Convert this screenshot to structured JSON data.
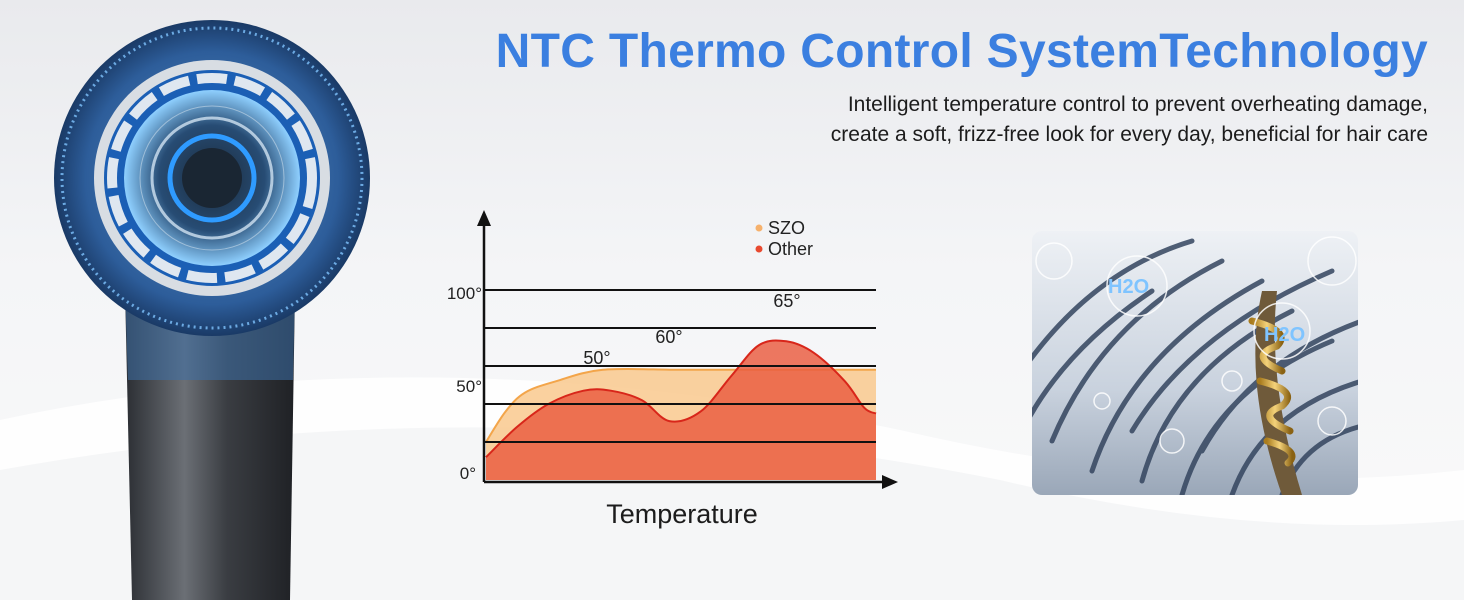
{
  "header": {
    "title": "NTC Thermo Control SystemTechnology",
    "subtitle_line1": "Intelligent temperature control to prevent overheating damage,",
    "subtitle_line2": "create a soft, frizz-free look for every day, beneficial for hair care"
  },
  "hair_panel": {
    "label_1": "H2O",
    "label_2": "H2O"
  },
  "colors": {
    "accent": "#3b7fe0",
    "szo": "#f6b16c",
    "other": "#e8492f"
  },
  "icons": [
    "hair-dryer-illustration",
    "hair-strand-illustration",
    "water-bubble-icon"
  ],
  "chart_data": {
    "type": "area",
    "xlabel": "Temperature",
    "ylabel": "",
    "ylim": [
      0,
      100
    ],
    "y_ticks": [
      "0°",
      "50°",
      "100°"
    ],
    "legend_position": "top",
    "legend": [
      {
        "name": "SZO",
        "color": "#f6b16c"
      },
      {
        "name": "Other",
        "color": "#e8492f"
      }
    ],
    "annotations": [
      "50°",
      "60°",
      "65°"
    ],
    "series": [
      {
        "name": "SZO",
        "x": [
          0,
          0.05,
          0.1,
          0.18,
          0.3,
          0.5,
          0.7,
          0.85,
          1.0
        ],
        "values": [
          20,
          36,
          46,
          52,
          58,
          58,
          58,
          58,
          58
        ]
      },
      {
        "name": "Other",
        "x": [
          0,
          0.08,
          0.16,
          0.25,
          0.32,
          0.4,
          0.47,
          0.55,
          0.63,
          0.7,
          0.77,
          0.84,
          0.92,
          0.97,
          1.0
        ],
        "values": [
          12,
          28,
          40,
          47,
          47,
          42,
          31,
          36,
          55,
          71,
          73,
          67,
          52,
          38,
          35
        ]
      }
    ]
  }
}
